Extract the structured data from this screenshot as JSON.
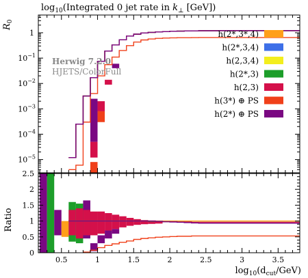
{
  "chart_data": [
    {
      "type": "line",
      "title": "log10(Integrated 0 jet rate in k⊥ [GeV])",
      "title_parts": {
        "pre": "log",
        "sub": "10",
        "mid": "(Integrated 0 jet rate in ",
        "k": "k",
        "ksub": "⊥",
        "post": " [GeV])"
      },
      "ylabel": {
        "main": "R",
        "sub": "0"
      },
      "yscale": "log",
      "xlim": [
        0.18,
        3.8
      ],
      "ylim": [
        3e-06,
        5
      ],
      "yticks": [
        {
          "value": 1,
          "label": "1"
        },
        {
          "value": 0.1,
          "label": "10",
          "exp": "−1"
        },
        {
          "value": 0.01,
          "label": "10",
          "exp": "−2"
        },
        {
          "value": 0.001,
          "label": "10",
          "exp": "−3"
        },
        {
          "value": 0.0001,
          "label": "10",
          "exp": "−4"
        },
        {
          "value": 1e-05,
          "label": "10",
          "exp": "−5"
        }
      ],
      "annotation": {
        "line1": "Herwig 7.2.0",
        "line2": "HJETS/ColorFull"
      },
      "legend_position": "right",
      "bin_edges": [
        0.2,
        0.3,
        0.4,
        0.5,
        0.6,
        0.7,
        0.8,
        0.9,
        1.0,
        1.1,
        1.2,
        1.3,
        1.4,
        1.5,
        1.6,
        1.7,
        1.8,
        1.9,
        2.0,
        2.1,
        2.2,
        2.3,
        2.4,
        2.5,
        2.6,
        2.7,
        2.8,
        2.9,
        3.0,
        3.1,
        3.2,
        3.3,
        3.4,
        3.5,
        3.6,
        3.7,
        3.8
      ],
      "series": [
        {
          "name": "h(2*,3*,4)",
          "color": "#ff9f1a",
          "values": [
            null,
            null,
            null,
            null,
            1.2e-05,
            0.00025,
            0.0032,
            0.017,
            0.075,
            0.19,
            0.33,
            0.53,
            0.74,
            0.88,
            0.98,
            1.03,
            1.07,
            1.11,
            1.14,
            1.16,
            1.18,
            1.19,
            1.2,
            1.2,
            1.2,
            1.21,
            1.21,
            1.21,
            1.21,
            1.21,
            1.21,
            1.21,
            1.21,
            1.21,
            1.21,
            1.21
          ]
        },
        {
          "name": "h(2*,3,4)",
          "color": "#3d6fe8",
          "values": [
            null,
            null,
            null,
            null,
            1.2e-05,
            0.00025,
            0.0032,
            0.017,
            0.075,
            0.19,
            0.33,
            0.53,
            0.74,
            0.88,
            0.98,
            1.03,
            1.07,
            1.11,
            1.14,
            1.16,
            1.18,
            1.19,
            1.2,
            1.2,
            1.2,
            1.21,
            1.21,
            1.21,
            1.21,
            1.21,
            1.21,
            1.21,
            1.21,
            1.21,
            1.21,
            1.21
          ]
        },
        {
          "name": "h(2,3,4)",
          "color": "#f3ee1d",
          "values": [
            null,
            null,
            null,
            null,
            1.2e-05,
            0.00025,
            0.0032,
            0.017,
            0.075,
            0.19,
            0.33,
            0.53,
            0.74,
            0.88,
            0.98,
            1.03,
            1.07,
            1.11,
            1.14,
            1.16,
            1.18,
            1.19,
            1.2,
            1.2,
            1.2,
            1.21,
            1.21,
            1.21,
            1.21,
            1.21,
            1.21,
            1.21,
            1.21,
            1.21,
            1.21,
            1.21
          ]
        },
        {
          "name": "h(2*,3)",
          "color": "#1d9e2a",
          "values": [
            null,
            null,
            null,
            null,
            1.2e-05,
            0.00025,
            0.0032,
            0.017,
            0.075,
            0.19,
            0.33,
            0.53,
            0.74,
            0.88,
            0.98,
            1.03,
            1.07,
            1.11,
            1.14,
            1.16,
            1.18,
            1.19,
            1.2,
            1.2,
            1.2,
            1.21,
            1.21,
            1.21,
            1.21,
            1.21,
            1.21,
            1.21,
            1.21,
            1.21,
            1.21,
            1.21
          ]
        },
        {
          "name": "h(2,3)",
          "color": "#d4104a",
          "values": [
            null,
            null,
            null,
            null,
            1.2e-05,
            0.00025,
            0.0032,
            0.017,
            0.075,
            0.19,
            0.33,
            0.53,
            0.74,
            0.88,
            0.98,
            1.03,
            1.07,
            1.11,
            1.14,
            1.16,
            1.18,
            1.19,
            1.2,
            1.2,
            1.2,
            1.21,
            1.21,
            1.21,
            1.21,
            1.21,
            1.21,
            1.21,
            1.21,
            1.21,
            1.21,
            1.21
          ]
        },
        {
          "name": "h(3*) ⊕ PS",
          "color": "#f0401a",
          "values": [
            null,
            null,
            null,
            null,
            4e-06,
            6e-06,
            0.0003,
            0.004,
            0.02,
            0.055,
            0.11,
            0.2,
            0.31,
            0.43,
            0.52,
            0.57,
            0.6,
            0.62,
            0.63,
            0.64,
            0.64,
            0.645,
            0.65,
            0.65,
            0.65,
            0.65,
            0.65,
            0.65,
            0.65,
            0.65,
            0.65,
            0.65,
            0.65,
            0.65,
            0.65,
            0.65
          ]
        },
        {
          "name": "h(2*) ⊕ PS",
          "color": "#7a0882",
          "values": [
            null,
            null,
            null,
            null,
            1.2e-05,
            0.00025,
            0.0032,
            0.017,
            0.075,
            0.19,
            0.33,
            0.53,
            0.74,
            0.88,
            0.98,
            1.03,
            1.07,
            1.11,
            1.14,
            1.16,
            1.18,
            1.19,
            1.2,
            1.2,
            1.2,
            1.21,
            1.21,
            1.21,
            1.21,
            1.21,
            1.21,
            1.21,
            1.21,
            1.21,
            1.21,
            1.21
          ]
        }
      ],
      "bands": [
        {
          "series": "h(2*) ⊕ PS",
          "color": "#7a0882",
          "x": [
            0.9,
            1.0
          ],
          "low": 5e-05,
          "high": 0.0025
        },
        {
          "series": "h(2,3)",
          "color": "#d4104a",
          "x": [
            0.9,
            1.0
          ],
          "low": 1.2e-05,
          "high": 5e-05
        },
        {
          "series": "h(2,3)",
          "color": "#d4104a",
          "x": [
            1.0,
            1.1
          ],
          "low": 0.0008,
          "high": 0.002
        },
        {
          "series": "h(3*) ⊕ PS",
          "color": "#f0401a",
          "x": [
            1.0,
            1.1
          ],
          "low": 0.0003,
          "high": 0.0008
        },
        {
          "series": "h(3*) ⊕ PS",
          "color": "#f0401a",
          "x": [
            0.9,
            1.0
          ],
          "low": 3e-06,
          "high": 8e-06
        },
        {
          "series": "h(2,3)",
          "color": "#d4104a",
          "x": [
            1.1,
            1.2
          ],
          "low": 0.009,
          "high": 0.014
        },
        {
          "series": "h(2*) ⊕ PS",
          "color": "#7a0882",
          "x": [
            1.2,
            1.3
          ],
          "low": 0.04,
          "high": 0.06
        }
      ]
    },
    {
      "type": "line",
      "title": "",
      "ylabel": "Ratio",
      "xlabel": {
        "pre": "log",
        "sub": "10",
        "mid": "(d",
        "dsub": "cut",
        "post": "/GeV)"
      },
      "xlim": [
        0.18,
        3.8
      ],
      "ylim": [
        0,
        2.5
      ],
      "xticks": [
        0.5,
        1,
        1.5,
        2,
        2.5,
        3,
        3.5
      ],
      "xtick_labels": [
        "0.5",
        "1",
        "1.5",
        "2",
        "2.5",
        "3",
        "3.5"
      ],
      "yticks": [
        0,
        0.5,
        1,
        1.5,
        2,
        2.5
      ],
      "ytick_labels": [
        "0",
        "0.5",
        "1",
        "1.5",
        "2",
        "2.5"
      ],
      "bands": [
        {
          "color": "#7a0882",
          "x": [
            0.2,
            0.3
          ],
          "low": 0,
          "high": 2.5
        },
        {
          "color": "#1d9e2a",
          "x": [
            0.3,
            0.4
          ],
          "low": 0,
          "high": 2.5
        },
        {
          "color": "#7a0882",
          "x": [
            0.4,
            0.5
          ],
          "low": 0.55,
          "high": 1.35
        },
        {
          "color": "#ff9f1a",
          "x": [
            0.5,
            0.6
          ],
          "low": 0.5,
          "high": 1.0
        },
        {
          "color": "#1d9e2a",
          "x": [
            0.6,
            0.7
          ],
          "low": 0.35,
          "high": 1.6
        },
        {
          "color": "#d4104a",
          "x": [
            0.6,
            0.7
          ],
          "low": 0.55,
          "high": 1.35
        },
        {
          "color": "#1d9e2a",
          "x": [
            0.7,
            0.8
          ],
          "low": 0.3,
          "high": 1.55
        },
        {
          "color": "#d4104a",
          "x": [
            0.7,
            0.8
          ],
          "low": 0.45,
          "high": 1.4
        },
        {
          "color": "#7a0882",
          "x": [
            0.8,
            0.9
          ],
          "low": 0.45,
          "high": 1.65
        },
        {
          "color": "#d4104a",
          "x": [
            0.8,
            0.9
          ],
          "low": 0.55,
          "high": 1.35
        },
        {
          "color": "#7a0882",
          "x": [
            0.9,
            1.0
          ],
          "low": 0.05,
          "high": 0.3
        },
        {
          "color": "#d4104a",
          "x": [
            0.9,
            1.0
          ],
          "low": 0.55,
          "high": 1.3
        },
        {
          "color": "#7a0882",
          "x": [
            1.0,
            1.1
          ],
          "low": 0.3,
          "high": 0.55
        },
        {
          "color": "#d4104a",
          "x": [
            1.0,
            1.1
          ],
          "low": 0.6,
          "high": 1.3
        },
        {
          "color": "#7a0882",
          "x": [
            1.1,
            1.2
          ],
          "low": 0.45,
          "high": 0.7
        },
        {
          "color": "#d4104a",
          "x": [
            1.1,
            1.2
          ],
          "low": 0.7,
          "high": 1.25
        },
        {
          "color": "#7a0882",
          "x": [
            1.2,
            1.3
          ],
          "low": 0.6,
          "high": 0.75
        },
        {
          "color": "#d4104a",
          "x": [
            1.2,
            1.3
          ],
          "low": 0.75,
          "high": 1.2
        },
        {
          "color": "#d4104a",
          "x": [
            1.3,
            1.4
          ],
          "low": 0.8,
          "high": 1.15
        },
        {
          "color": "#d4104a",
          "x": [
            1.4,
            1.5
          ],
          "low": 0.85,
          "high": 1.1
        },
        {
          "color": "#d4104a",
          "x": [
            1.5,
            1.6
          ],
          "low": 0.88,
          "high": 1.06
        },
        {
          "color": "#d4104a",
          "x": [
            1.6,
            1.7
          ],
          "low": 0.9,
          "high": 1.03
        },
        {
          "color": "#d4104a",
          "x": [
            1.7,
            1.8
          ],
          "low": 0.91,
          "high": 1.01
        },
        {
          "color": "#d4104a",
          "x": [
            1.8,
            1.9
          ],
          "low": 0.92,
          "high": 1.0
        }
      ],
      "lines": [
        {
          "name": "h(2*,3*,4)",
          "color": "#ff9f1a",
          "values": [
            null,
            null,
            null,
            null,
            1,
            1,
            1,
            1,
            1,
            1,
            1,
            1,
            1,
            1,
            1,
            1,
            1,
            1,
            1,
            1,
            1,
            1,
            1,
            1,
            1,
            1,
            1,
            1,
            1,
            1,
            1,
            1,
            1,
            1,
            1,
            1
          ]
        },
        {
          "name": "h(2*,3)",
          "color": "#1d9e2a",
          "values": [
            null,
            null,
            null,
            null,
            1,
            1,
            1,
            1,
            1,
            1,
            1,
            1,
            1,
            1,
            1,
            0.99,
            0.99,
            0.98,
            0.98,
            0.97,
            0.97,
            0.96,
            0.96,
            0.96,
            0.96,
            0.96,
            0.96,
            0.96,
            0.96,
            0.96,
            0.96,
            0.96,
            0.96,
            0.96,
            0.96,
            0.96
          ]
        },
        {
          "name": "h(2,3)",
          "color": "#d4104a",
          "values": [
            null,
            null,
            null,
            null,
            1,
            1,
            1,
            1,
            1,
            1,
            1,
            1,
            1,
            1,
            1,
            1,
            0.99,
            0.98,
            0.98,
            0.97,
            0.97,
            0.96,
            0.96,
            0.96,
            0.96,
            0.96,
            0.96,
            0.96,
            0.96,
            0.96,
            0.96,
            0.96,
            0.96,
            0.96,
            0.96,
            0.96
          ]
        },
        {
          "name": "h(2*) ⊕ PS",
          "color": "#7a0882",
          "values": [
            null,
            null,
            null,
            null,
            1,
            1,
            1,
            1,
            1,
            1,
            1,
            1,
            1,
            1,
            1,
            1,
            0.99,
            0.98,
            0.97,
            0.96,
            0.95,
            0.94,
            0.93,
            0.93,
            0.93,
            0.93,
            0.93,
            0.93,
            0.93,
            0.93,
            0.93,
            0.93,
            0.93,
            0.93,
            0.93,
            0.93
          ]
        },
        {
          "name": "h(3*) ⊕ PS",
          "color": "#f0401a",
          "values": [
            null,
            null,
            null,
            null,
            null,
            null,
            0.02,
            0.08,
            0.16,
            0.23,
            0.28,
            0.33,
            0.37,
            0.42,
            0.45,
            0.47,
            0.49,
            0.5,
            0.51,
            0.52,
            0.52,
            0.53,
            0.53,
            0.53,
            0.53,
            0.53,
            0.53,
            0.53,
            0.53,
            0.53,
            0.53,
            0.53,
            0.53,
            0.53,
            0.53,
            0.53
          ]
        }
      ]
    }
  ]
}
